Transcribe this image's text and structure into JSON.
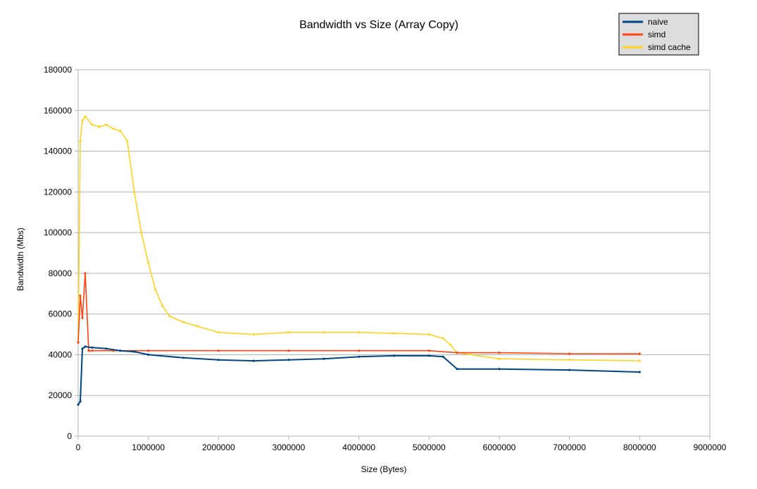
{
  "chart_data": {
    "type": "line",
    "title": "Bandwidth vs Size (Array Copy)",
    "xlabel": "Size (Bytes)",
    "ylabel": "Bandwidth (Mbs)",
    "xlim": [
      0,
      9000000
    ],
    "ylim": [
      0,
      180000
    ],
    "x_ticks": [
      0,
      1000000,
      2000000,
      3000000,
      4000000,
      5000000,
      6000000,
      7000000,
      8000000,
      9000000
    ],
    "y_ticks": [
      0,
      20000,
      40000,
      60000,
      80000,
      100000,
      120000,
      140000,
      160000,
      180000
    ],
    "grid": "horizontal",
    "legend_position": "top-right",
    "series": [
      {
        "name": "naive",
        "color": "#004586",
        "x": [
          0,
          30000,
          60000,
          100000,
          200000,
          400000,
          600000,
          800000,
          1000000,
          1500000,
          2000000,
          2500000,
          3000000,
          3500000,
          4000000,
          4500000,
          5000000,
          5200000,
          5400000,
          6000000,
          7000000,
          8000000
        ],
        "values": [
          15500,
          17000,
          43000,
          44000,
          43500,
          43000,
          42000,
          41500,
          40000,
          38500,
          37500,
          37000,
          37500,
          38000,
          39000,
          39500,
          39500,
          39000,
          33000,
          33000,
          32500,
          31500
        ]
      },
      {
        "name": "simd",
        "color": "#ff420e",
        "x": [
          0,
          30000,
          60000,
          100000,
          150000,
          200000,
          500000,
          1000000,
          2000000,
          3000000,
          4000000,
          5000000,
          5400000,
          6000000,
          7000000,
          8000000
        ],
        "values": [
          46000,
          69000,
          58000,
          80000,
          42000,
          42000,
          42000,
          42000,
          42000,
          42000,
          42000,
          42000,
          41000,
          41000,
          40500,
          40500
        ]
      },
      {
        "name": "simd cache",
        "color": "#ffd320",
        "x": [
          0,
          30000,
          60000,
          100000,
          200000,
          300000,
          400000,
          500000,
          600000,
          700000,
          800000,
          900000,
          1000000,
          1100000,
          1200000,
          1300000,
          1500000,
          1700000,
          2000000,
          2500000,
          3000000,
          3500000,
          4000000,
          4500000,
          5000000,
          5200000,
          5300000,
          5400000,
          6000000,
          7000000,
          8000000
        ],
        "values": [
          46000,
          145000,
          155000,
          157000,
          153000,
          152000,
          153000,
          151000,
          150000,
          145000,
          120000,
          100000,
          85000,
          72000,
          64000,
          59000,
          56000,
          54000,
          51000,
          50000,
          51000,
          51000,
          51000,
          50500,
          50000,
          48000,
          45000,
          41000,
          38000,
          37500,
          37000
        ]
      }
    ],
    "legend": [
      "naive",
      "simd",
      "simd cache"
    ]
  }
}
